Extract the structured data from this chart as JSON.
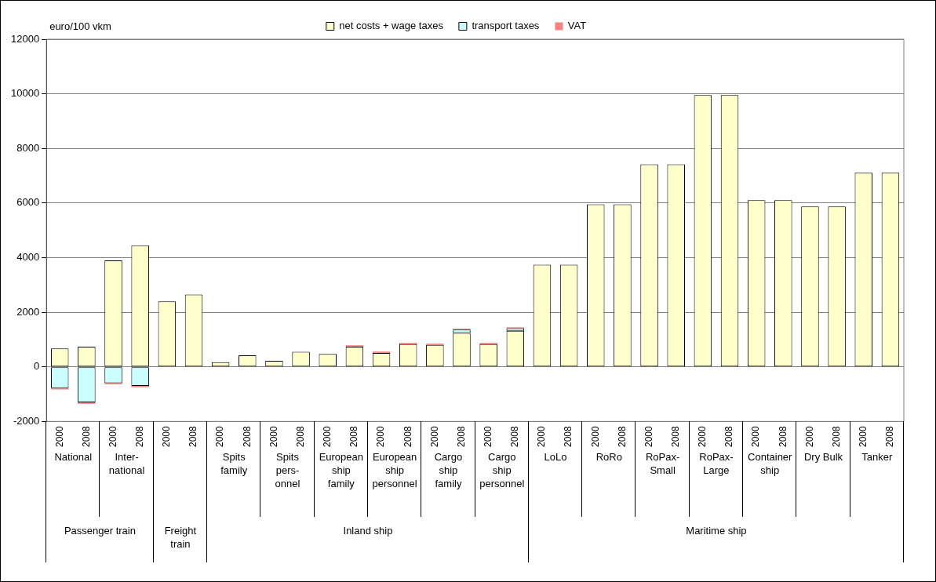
{
  "chart_data": {
    "type": "bar",
    "stacked": true,
    "ylabel": "euro/100 vkm",
    "categories": [
      "2000",
      "2008",
      "2000",
      "2008",
      "2000",
      "2008",
      "2000",
      "2008",
      "2000",
      "2008",
      "2000",
      "2008",
      "2000",
      "2008",
      "2000",
      "2008",
      "2000",
      "2008",
      "2000",
      "2008",
      "2000",
      "2008",
      "2000",
      "2008",
      "2000",
      "2008",
      "2000",
      "2008",
      "2000",
      "2008",
      "2000",
      "2008"
    ],
    "series": [
      {
        "name": "net costs + wage taxes",
        "color": "#ffffcc",
        "values": [
          670,
          740,
          3900,
          4450,
          2400,
          2650,
          170,
          420,
          220,
          550,
          470,
          740,
          510,
          830,
          800,
          1240,
          830,
          1320,
          3740,
          3740,
          5950,
          5950,
          7420,
          7420,
          9950,
          9950,
          6100,
          6100,
          5870,
          5870,
          7110,
          7110
        ]
      },
      {
        "name": "transport taxes",
        "color": "#ccffff",
        "values": [
          -780,
          -1300,
          -600,
          -700,
          null,
          null,
          null,
          null,
          null,
          null,
          null,
          null,
          null,
          null,
          null,
          120,
          null,
          90,
          null,
          null,
          null,
          null,
          null,
          null,
          null,
          null,
          null,
          null,
          null,
          null,
          null,
          null
        ]
      },
      {
        "name": "VAT",
        "color": "#ff8080",
        "values": [
          -50,
          -50,
          -40,
          -50,
          null,
          null,
          null,
          null,
          null,
          null,
          null,
          50,
          50,
          50,
          50,
          40,
          50,
          40,
          null,
          null,
          null,
          null,
          null,
          null,
          null,
          null,
          null,
          null,
          null,
          null,
          null,
          null
        ]
      }
    ],
    "ylim": [
      -2000,
      12000
    ],
    "yticks": [
      -2000,
      0,
      2000,
      4000,
      6000,
      8000,
      10000,
      12000
    ],
    "grid": "y",
    "legend": "top",
    "annotations": [
      "National",
      "Inter-\nnational",
      "Spits\nfamily",
      "Spits\npers-\nonnel",
      "European\nship\nfamily",
      "European\nship\npersonnel",
      "Cargo\nship\nfamily",
      "Cargo\nship\npersonnel",
      "LoLo",
      "RoRo",
      "RoPax-\nSmall",
      "RoPax-\nLarge",
      "Container\nship",
      "Dry Bulk",
      "Tanker",
      "Passenger train",
      "Freight\ntrain",
      "Inland ship",
      "Maritime ship"
    ]
  }
}
